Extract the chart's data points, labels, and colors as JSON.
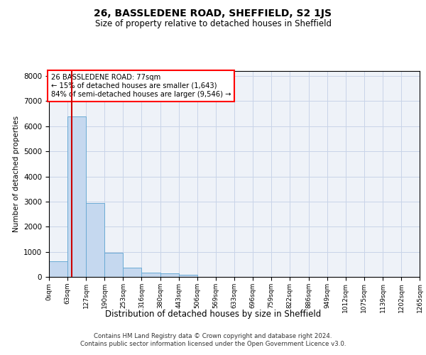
{
  "title": "26, BASSLEDENE ROAD, SHEFFIELD, S2 1JS",
  "subtitle": "Size of property relative to detached houses in Sheffield",
  "xlabel": "Distribution of detached houses by size in Sheffield",
  "ylabel": "Number of detached properties",
  "footer_line1": "Contains HM Land Registry data © Crown copyright and database right 2024.",
  "footer_line2": "Contains public sector information licensed under the Open Government Licence v3.0.",
  "annotation_line1": "26 BASSLEDENE ROAD: 77sqm",
  "annotation_line2": "← 15% of detached houses are smaller (1,643)",
  "annotation_line3": "84% of semi-detached houses are larger (9,546) →",
  "property_size": 77,
  "bar_edges": [
    0,
    63,
    127,
    190,
    253,
    316,
    380,
    443,
    506,
    569,
    633,
    696,
    759,
    822,
    886,
    949,
    1012,
    1075,
    1139,
    1202,
    1265
  ],
  "bar_values": [
    620,
    6400,
    2930,
    960,
    380,
    180,
    140,
    90,
    0,
    0,
    0,
    0,
    0,
    0,
    0,
    0,
    0,
    0,
    0,
    0
  ],
  "bar_color": "#c5d8ef",
  "bar_edge_color": "#6aaad4",
  "vline_color": "#cc0000",
  "vline_x": 77,
  "ylim": [
    0,
    8200
  ],
  "yticks": [
    0,
    1000,
    2000,
    3000,
    4000,
    5000,
    6000,
    7000,
    8000
  ],
  "grid_color": "#c8d4e8",
  "background_color": "#eef2f8",
  "tick_labels": [
    "0sqm",
    "63sqm",
    "127sqm",
    "190sqm",
    "253sqm",
    "316sqm",
    "380sqm",
    "443sqm",
    "506sqm",
    "569sqm",
    "633sqm",
    "696sqm",
    "759sqm",
    "822sqm",
    "886sqm",
    "949sqm",
    "1012sqm",
    "1075sqm",
    "1139sqm",
    "1202sqm",
    "1265sqm"
  ]
}
